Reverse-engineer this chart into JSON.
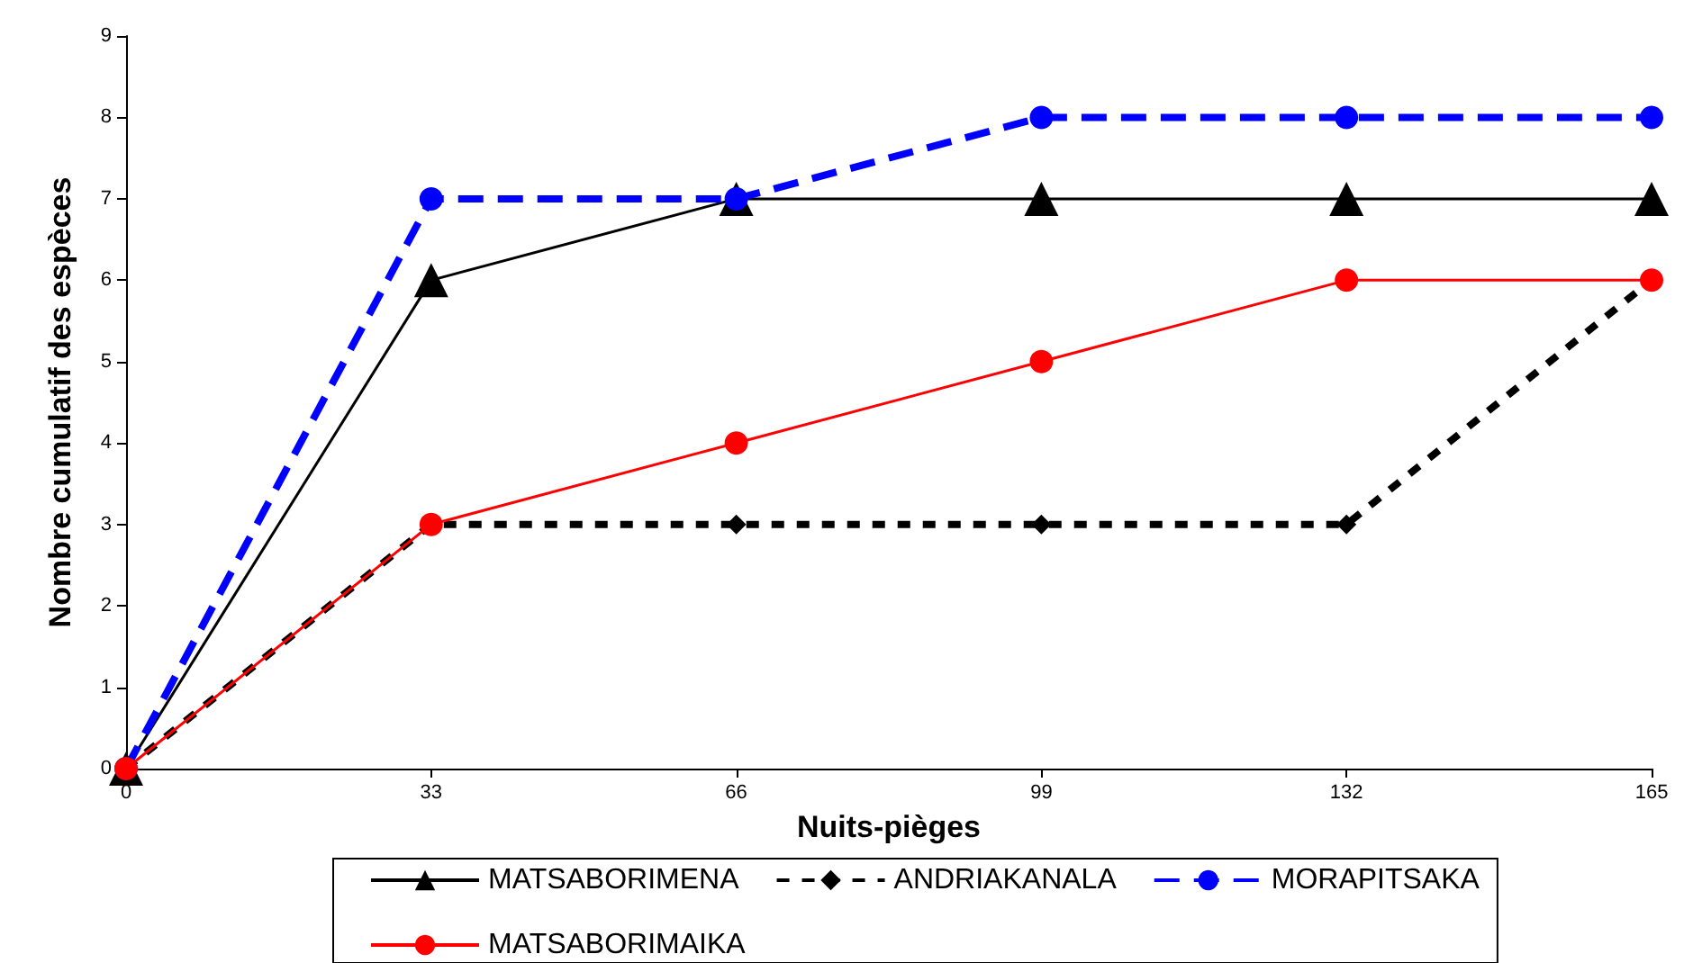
{
  "chart_data": {
    "type": "line",
    "xlabel": "Nuits-pièges",
    "ylabel": "Nombre cumulatif des espèces",
    "x": [
      0,
      33,
      66,
      99,
      132,
      165
    ],
    "xlim": [
      0,
      165
    ],
    "xticks": [
      0,
      33,
      66,
      99,
      132,
      165
    ],
    "ylim": [
      0,
      9
    ],
    "yticks": [
      0,
      1,
      2,
      3,
      4,
      5,
      6,
      7,
      8,
      9
    ],
    "grid": false,
    "legend": "bottom",
    "series": [
      {
        "name": "MATSABORIMENA",
        "color": "#000000",
        "values": [
          0,
          6,
          7,
          7,
          7,
          7
        ],
        "marker": "triangle",
        "line_style": "solid"
      },
      {
        "name": "ANDRIAKANALA",
        "color": "#000000",
        "values": [
          0,
          3,
          3,
          3,
          3,
          6
        ],
        "marker": "diamond",
        "line_style": "dotted"
      },
      {
        "name": "MORAPITSAKA",
        "color": "#0000ff",
        "values": [
          0,
          7,
          7,
          8,
          8,
          8
        ],
        "marker": "circle",
        "line_style": "dashed"
      },
      {
        "name": "MATSABORIMAIKA",
        "color": "#ff0000",
        "values": [
          0,
          3,
          4,
          5,
          6,
          6
        ],
        "marker": "circle",
        "line_style": "solid"
      }
    ]
  }
}
